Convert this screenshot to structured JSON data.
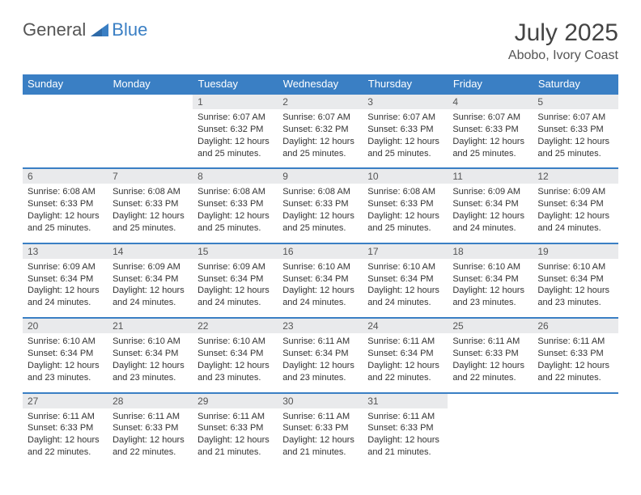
{
  "colors": {
    "brand_blue": "#3a7fc4",
    "header_bg": "#3a7fc4",
    "num_row_bg": "#e9eaec",
    "text": "#333333",
    "muted": "#555555",
    "page_bg": "#ffffff"
  },
  "typography": {
    "title_fontsize": 30,
    "location_fontsize": 16,
    "weekday_fontsize": 13,
    "daynum_fontsize": 12,
    "cell_fontsize": 11
  },
  "logo": {
    "part1": "General",
    "part2": "Blue"
  },
  "title": "July 2025",
  "location": "Abobo, Ivory Coast",
  "weekdays": [
    "Sunday",
    "Monday",
    "Tuesday",
    "Wednesday",
    "Thursday",
    "Friday",
    "Saturday"
  ],
  "weeks": [
    {
      "nums": [
        "",
        "",
        "1",
        "2",
        "3",
        "4",
        "5"
      ],
      "cells": [
        {
          "sunrise": "",
          "sunset": "",
          "daylight": ""
        },
        {
          "sunrise": "",
          "sunset": "",
          "daylight": ""
        },
        {
          "sunrise": "Sunrise: 6:07 AM",
          "sunset": "Sunset: 6:32 PM",
          "daylight": "Daylight: 12 hours and 25 minutes."
        },
        {
          "sunrise": "Sunrise: 6:07 AM",
          "sunset": "Sunset: 6:32 PM",
          "daylight": "Daylight: 12 hours and 25 minutes."
        },
        {
          "sunrise": "Sunrise: 6:07 AM",
          "sunset": "Sunset: 6:33 PM",
          "daylight": "Daylight: 12 hours and 25 minutes."
        },
        {
          "sunrise": "Sunrise: 6:07 AM",
          "sunset": "Sunset: 6:33 PM",
          "daylight": "Daylight: 12 hours and 25 minutes."
        },
        {
          "sunrise": "Sunrise: 6:07 AM",
          "sunset": "Sunset: 6:33 PM",
          "daylight": "Daylight: 12 hours and 25 minutes."
        }
      ]
    },
    {
      "nums": [
        "6",
        "7",
        "8",
        "9",
        "10",
        "11",
        "12"
      ],
      "cells": [
        {
          "sunrise": "Sunrise: 6:08 AM",
          "sunset": "Sunset: 6:33 PM",
          "daylight": "Daylight: 12 hours and 25 minutes."
        },
        {
          "sunrise": "Sunrise: 6:08 AM",
          "sunset": "Sunset: 6:33 PM",
          "daylight": "Daylight: 12 hours and 25 minutes."
        },
        {
          "sunrise": "Sunrise: 6:08 AM",
          "sunset": "Sunset: 6:33 PM",
          "daylight": "Daylight: 12 hours and 25 minutes."
        },
        {
          "sunrise": "Sunrise: 6:08 AM",
          "sunset": "Sunset: 6:33 PM",
          "daylight": "Daylight: 12 hours and 25 minutes."
        },
        {
          "sunrise": "Sunrise: 6:08 AM",
          "sunset": "Sunset: 6:33 PM",
          "daylight": "Daylight: 12 hours and 25 minutes."
        },
        {
          "sunrise": "Sunrise: 6:09 AM",
          "sunset": "Sunset: 6:34 PM",
          "daylight": "Daylight: 12 hours and 24 minutes."
        },
        {
          "sunrise": "Sunrise: 6:09 AM",
          "sunset": "Sunset: 6:34 PM",
          "daylight": "Daylight: 12 hours and 24 minutes."
        }
      ]
    },
    {
      "nums": [
        "13",
        "14",
        "15",
        "16",
        "17",
        "18",
        "19"
      ],
      "cells": [
        {
          "sunrise": "Sunrise: 6:09 AM",
          "sunset": "Sunset: 6:34 PM",
          "daylight": "Daylight: 12 hours and 24 minutes."
        },
        {
          "sunrise": "Sunrise: 6:09 AM",
          "sunset": "Sunset: 6:34 PM",
          "daylight": "Daylight: 12 hours and 24 minutes."
        },
        {
          "sunrise": "Sunrise: 6:09 AM",
          "sunset": "Sunset: 6:34 PM",
          "daylight": "Daylight: 12 hours and 24 minutes."
        },
        {
          "sunrise": "Sunrise: 6:10 AM",
          "sunset": "Sunset: 6:34 PM",
          "daylight": "Daylight: 12 hours and 24 minutes."
        },
        {
          "sunrise": "Sunrise: 6:10 AM",
          "sunset": "Sunset: 6:34 PM",
          "daylight": "Daylight: 12 hours and 24 minutes."
        },
        {
          "sunrise": "Sunrise: 6:10 AM",
          "sunset": "Sunset: 6:34 PM",
          "daylight": "Daylight: 12 hours and 23 minutes."
        },
        {
          "sunrise": "Sunrise: 6:10 AM",
          "sunset": "Sunset: 6:34 PM",
          "daylight": "Daylight: 12 hours and 23 minutes."
        }
      ]
    },
    {
      "nums": [
        "20",
        "21",
        "22",
        "23",
        "24",
        "25",
        "26"
      ],
      "cells": [
        {
          "sunrise": "Sunrise: 6:10 AM",
          "sunset": "Sunset: 6:34 PM",
          "daylight": "Daylight: 12 hours and 23 minutes."
        },
        {
          "sunrise": "Sunrise: 6:10 AM",
          "sunset": "Sunset: 6:34 PM",
          "daylight": "Daylight: 12 hours and 23 minutes."
        },
        {
          "sunrise": "Sunrise: 6:10 AM",
          "sunset": "Sunset: 6:34 PM",
          "daylight": "Daylight: 12 hours and 23 minutes."
        },
        {
          "sunrise": "Sunrise: 6:11 AM",
          "sunset": "Sunset: 6:34 PM",
          "daylight": "Daylight: 12 hours and 23 minutes."
        },
        {
          "sunrise": "Sunrise: 6:11 AM",
          "sunset": "Sunset: 6:34 PM",
          "daylight": "Daylight: 12 hours and 22 minutes."
        },
        {
          "sunrise": "Sunrise: 6:11 AM",
          "sunset": "Sunset: 6:33 PM",
          "daylight": "Daylight: 12 hours and 22 minutes."
        },
        {
          "sunrise": "Sunrise: 6:11 AM",
          "sunset": "Sunset: 6:33 PM",
          "daylight": "Daylight: 12 hours and 22 minutes."
        }
      ]
    },
    {
      "nums": [
        "27",
        "28",
        "29",
        "30",
        "31",
        "",
        ""
      ],
      "cells": [
        {
          "sunrise": "Sunrise: 6:11 AM",
          "sunset": "Sunset: 6:33 PM",
          "daylight": "Daylight: 12 hours and 22 minutes."
        },
        {
          "sunrise": "Sunrise: 6:11 AM",
          "sunset": "Sunset: 6:33 PM",
          "daylight": "Daylight: 12 hours and 22 minutes."
        },
        {
          "sunrise": "Sunrise: 6:11 AM",
          "sunset": "Sunset: 6:33 PM",
          "daylight": "Daylight: 12 hours and 21 minutes."
        },
        {
          "sunrise": "Sunrise: 6:11 AM",
          "sunset": "Sunset: 6:33 PM",
          "daylight": "Daylight: 12 hours and 21 minutes."
        },
        {
          "sunrise": "Sunrise: 6:11 AM",
          "sunset": "Sunset: 6:33 PM",
          "daylight": "Daylight: 12 hours and 21 minutes."
        },
        {
          "sunrise": "",
          "sunset": "",
          "daylight": ""
        },
        {
          "sunrise": "",
          "sunset": "",
          "daylight": ""
        }
      ]
    }
  ]
}
